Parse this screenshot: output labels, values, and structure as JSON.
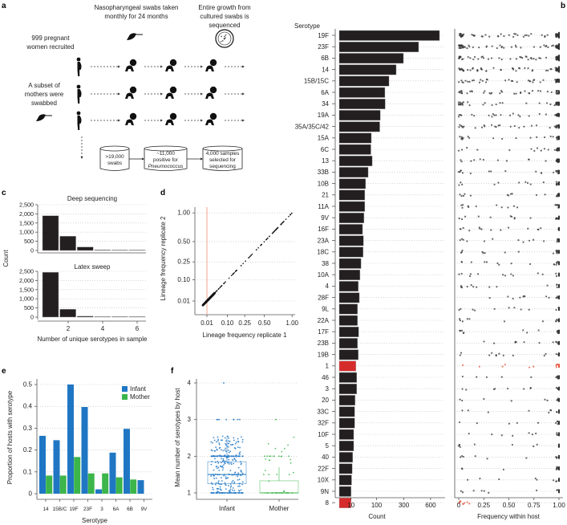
{
  "panel_labels": {
    "a": "a",
    "b": "b",
    "c": "c",
    "d": "d",
    "e": "e",
    "f": "f"
  },
  "panel_a": {
    "swab_title": [
      "Nasopharyngeal swabs taken",
      "monthly for 24 months"
    ],
    "seq_title": [
      "Entire growth from",
      "cultured swabs is",
      "sequenced"
    ],
    "recruited": [
      "999 pregnant",
      "women recruited"
    ],
    "subset": [
      "A subset of",
      "mothers were",
      "swabbed"
    ],
    "boxes": [
      {
        "lines": [
          ">19,000",
          "swabs"
        ]
      },
      {
        "lines": [
          "~11,000",
          "positive for",
          "Pneumococcus"
        ]
      },
      {
        "lines": [
          "4,000 samples",
          "selected for",
          "sequencing"
        ]
      }
    ]
  },
  "chart_data": [
    {
      "id": "b-count",
      "type": "bar",
      "orientation": "horizontal",
      "ylabel": "Serotype",
      "xlabel": "Count",
      "xscale": "sqrt",
      "xticks": [
        "10",
        "100",
        "300",
        "600"
      ],
      "highlight_color": "#d62b2b",
      "bar_color": "#231f20",
      "categories": [
        "19F",
        "23F",
        "6B",
        "14",
        "15B/15C",
        "6A",
        "34",
        "19A",
        "35A/35C/42",
        "15A",
        "6C",
        "13",
        "33B",
        "10B",
        "21",
        "11A",
        "9V",
        "16F",
        "23A",
        "18C",
        "38",
        "10A",
        "4",
        "28F",
        "9L",
        "22A",
        "17F",
        "23B",
        "19B",
        "1",
        "46",
        "3",
        "20",
        "33C",
        "32F",
        "10F",
        "5",
        "40",
        "22F",
        "10X",
        "9N",
        "8"
      ],
      "values": [
        723,
        453,
        296,
        233,
        178,
        150,
        152,
        121,
        118,
        74,
        72,
        78,
        60,
        50,
        47,
        47,
        44,
        39,
        42,
        41,
        34,
        31,
        26,
        29,
        24,
        24,
        27,
        24,
        26,
        20,
        22,
        22,
        18,
        17,
        17,
        15,
        15,
        13,
        12,
        11,
        10,
        10
      ],
      "highlighted": [
        "1",
        "8"
      ]
    },
    {
      "id": "b-freq",
      "type": "scatter",
      "xlabel": "Frequency within host",
      "xticks": [
        "0",
        "0.25",
        "0.50",
        "0.75",
        "1.00"
      ],
      "xlim": [
        0,
        1
      ],
      "point_color": "#333333",
      "highlight_color": "#e8553f"
    },
    {
      "id": "c-deep",
      "type": "bar",
      "title": "Deep sequencing",
      "ylabel": "Count",
      "x": [
        1,
        2,
        3,
        4,
        5,
        6
      ],
      "values": [
        1900,
        780,
        190,
        30,
        5,
        3
      ],
      "yticks": [
        "0",
        "500",
        "1,000",
        "1,500",
        "2,000",
        "2,500"
      ],
      "ylim": [
        0,
        2500
      ]
    },
    {
      "id": "c-latex",
      "type": "bar",
      "title": "Latex sweep",
      "x": [
        1,
        2,
        3,
        4,
        5,
        6
      ],
      "values": [
        2450,
        430,
        50,
        5,
        0,
        0
      ],
      "yticks": [
        "0",
        "500",
        "1,000",
        "1,500",
        "2,000",
        "2,500"
      ],
      "ylim": [
        0,
        2500
      ],
      "xticks": [
        "2",
        "4",
        "6"
      ],
      "xlabel": "Number of unique serotypes in sample"
    },
    {
      "id": "d",
      "type": "scatter",
      "xlabel": "Lineage frequency replicate 1",
      "ylabel": "Lineage frequency replicate 2",
      "ticks": [
        "0.01",
        "0.10",
        "0.25",
        "0.50",
        "1.00"
      ],
      "threshold": 0.01,
      "threshold_color": "#f4a58a",
      "relationship": "y = x"
    },
    {
      "id": "e",
      "type": "bar",
      "xlabel": "Serotype",
      "ylabel": "Proportion of hosts with serotype",
      "categories": [
        "14",
        "15B/C",
        "19F",
        "23F",
        "3",
        "6A",
        "6B",
        "9V"
      ],
      "series": [
        {
          "name": "Infant",
          "color": "#1f77c4",
          "values": [
            0.265,
            0.245,
            0.5,
            0.397,
            0.02,
            0.188,
            0.297,
            0.062
          ]
        },
        {
          "name": "Mother",
          "color": "#3cb54a",
          "values": [
            0.083,
            0.083,
            0.168,
            0.093,
            0.093,
            0.075,
            0.065,
            0
          ]
        }
      ],
      "yticks": [
        "0",
        "0.1",
        "0.2",
        "0.3",
        "0.4",
        "0.5"
      ],
      "ylim": [
        0,
        0.5
      ],
      "legend": "top-right"
    },
    {
      "id": "f",
      "type": "box",
      "ylabel": "Mean number of serotypes by host",
      "categories": [
        "Infant",
        "Mother"
      ],
      "yticks": [
        "1",
        "2",
        "3",
        "4"
      ],
      "ylim": [
        1,
        4
      ],
      "boxes": [
        {
          "name": "Infant",
          "color": "#1f77c4",
          "q1": 1.25,
          "median": 1.5,
          "q3": 1.85,
          "whisker_low": 1,
          "whisker_high": 2.5,
          "max": 4
        },
        {
          "name": "Mother",
          "color": "#3cb54a",
          "q1": 1.0,
          "median": 1.0,
          "q3": 1.33,
          "whisker_low": 1,
          "whisker_high": 1.7,
          "max": 3
        }
      ]
    }
  ]
}
